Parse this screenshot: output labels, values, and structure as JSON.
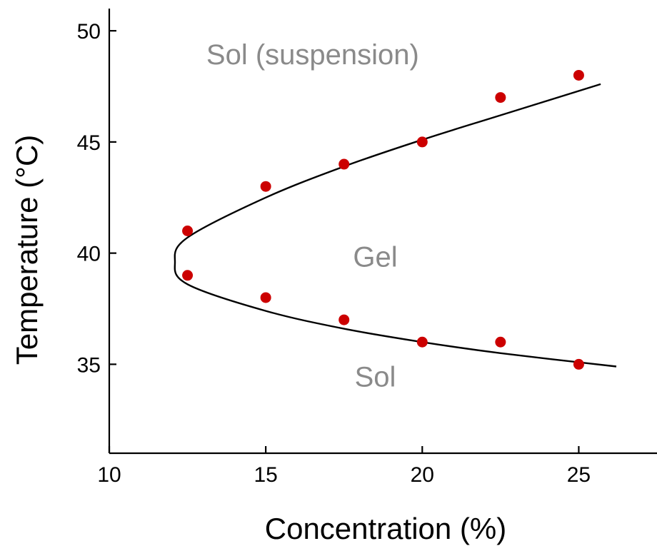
{
  "chart_data": {
    "type": "scatter",
    "xlabel": "Concentration (%)",
    "ylabel": "Temperature (°C)",
    "xlim": [
      10,
      27.5
    ],
    "ylim": [
      31,
      51
    ],
    "x_ticks": [
      10,
      15,
      20,
      25
    ],
    "y_ticks": [
      35,
      40,
      45,
      50
    ],
    "grid": false,
    "series": [
      {
        "marker": "circle",
        "color": "#cc0000",
        "points": [
          {
            "x": 12.5,
            "y": 41
          },
          {
            "x": 12.5,
            "y": 39
          },
          {
            "x": 15,
            "y": 43
          },
          {
            "x": 15,
            "y": 38
          },
          {
            "x": 17.5,
            "y": 44
          },
          {
            "x": 17.5,
            "y": 37
          },
          {
            "x": 20,
            "y": 45
          },
          {
            "x": 20,
            "y": 36
          },
          {
            "x": 22.5,
            "y": 47
          },
          {
            "x": 22.5,
            "y": 36
          },
          {
            "x": 25,
            "y": 48
          },
          {
            "x": 25,
            "y": 35
          }
        ]
      }
    ],
    "fit_curve": {
      "color": "#000000",
      "vertex": {
        "x": 12.1,
        "y": 39.6
      },
      "upper_branch": [
        {
          "x": 12.5,
          "y": 40.7
        },
        {
          "x": 15,
          "y": 42.5
        },
        {
          "x": 17.5,
          "y": 43.9
        },
        {
          "x": 20,
          "y": 45.1
        },
        {
          "x": 22.5,
          "y": 46.2
        },
        {
          "x": 25.7,
          "y": 47.6
        }
      ],
      "lower_branch": [
        {
          "x": 12.5,
          "y": 38.6
        },
        {
          "x": 15,
          "y": 37.4
        },
        {
          "x": 17.5,
          "y": 36.6
        },
        {
          "x": 20,
          "y": 36.0
        },
        {
          "x": 22.5,
          "y": 35.5
        },
        {
          "x": 26.2,
          "y": 34.9
        }
      ]
    },
    "annotations": [
      {
        "text": "Sol (suspension)",
        "x": 16.5,
        "y": 48.5,
        "color": "#8a8a8a"
      },
      {
        "text": "Gel",
        "x": 18.5,
        "y": 39.4,
        "color": "#8a8a8a"
      },
      {
        "text": "Sol",
        "x": 18.5,
        "y": 34.0,
        "color": "#8a8a8a"
      }
    ]
  }
}
